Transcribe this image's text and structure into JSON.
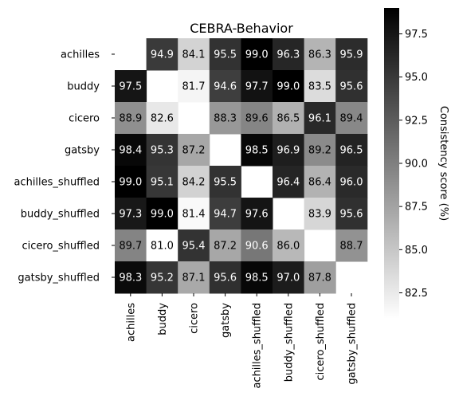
{
  "chart_data": {
    "type": "heatmap",
    "title": "CEBRA-Behavior",
    "rows": [
      "achilles",
      "buddy",
      "cicero",
      "gatsby",
      "achilles_shuffled",
      "buddy_shuffled",
      "cicero_shuffled",
      "gatsby_shuffled"
    ],
    "columns": [
      "achilles",
      "buddy",
      "cicero",
      "gatsby",
      "achilles_shuffled",
      "buddy_shuffled",
      "cicero_shuffled",
      "gatsby_shuffled"
    ],
    "values": [
      [
        null,
        94.9,
        84.1,
        95.5,
        99.0,
        96.3,
        86.3,
        95.9
      ],
      [
        97.5,
        null,
        81.7,
        94.6,
        97.7,
        99.0,
        83.5,
        95.6
      ],
      [
        88.9,
        82.6,
        null,
        88.3,
        89.6,
        86.5,
        96.1,
        89.4
      ],
      [
        98.4,
        95.3,
        87.2,
        null,
        98.5,
        96.9,
        89.2,
        96.5
      ],
      [
        99.0,
        95.1,
        84.2,
        95.5,
        null,
        96.4,
        86.4,
        96.0
      ],
      [
        97.3,
        99.0,
        81.4,
        94.7,
        97.6,
        null,
        83.9,
        95.6
      ],
      [
        89.7,
        81.0,
        95.4,
        87.2,
        90.6,
        86.0,
        null,
        88.7
      ],
      [
        98.3,
        95.2,
        87.1,
        95.6,
        98.5,
        97.0,
        87.8,
        null
      ]
    ],
    "colorbar": {
      "label": "Consistency score (%)",
      "range": [
        81.0,
        99.0
      ],
      "ticks": [
        82.5,
        85.0,
        87.5,
        90.0,
        92.5,
        95.0,
        97.5
      ],
      "colormap": "white-to-black"
    }
  }
}
